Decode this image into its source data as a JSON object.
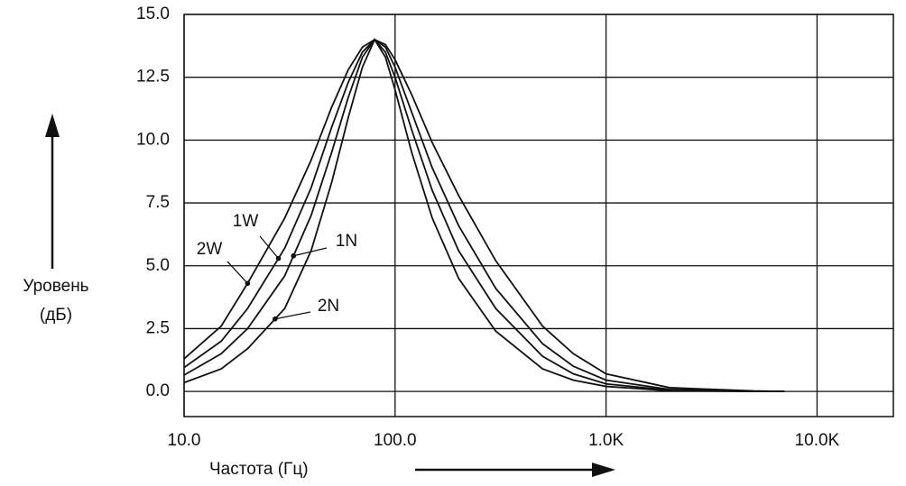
{
  "chart_data": {
    "type": "line",
    "x_label": "Частота (Гц)",
    "y_label": [
      "Уровень",
      "(дБ)"
    ],
    "log_x": true,
    "grid": true,
    "color": "#111111",
    "xlim": [
      10,
      23000
    ],
    "ylim": [
      -1,
      15
    ],
    "xticks": [
      {
        "value": 10,
        "label": "10.0"
      },
      {
        "value": 100,
        "label": "100.0"
      },
      {
        "value": 1000,
        "label": "1.0K"
      },
      {
        "value": 10000,
        "label": "10.0K"
      }
    ],
    "yticks": [
      {
        "value": 0,
        "label": "0.0"
      },
      {
        "value": 2.5,
        "label": "2.5"
      },
      {
        "value": 5,
        "label": "5.0"
      },
      {
        "value": 7.5,
        "label": "7.5"
      },
      {
        "value": 10,
        "label": "10.0"
      },
      {
        "value": 12.5,
        "label": "12.5"
      },
      {
        "value": 15,
        "label": "15.0"
      }
    ],
    "x": [
      10,
      15,
      20,
      30,
      40,
      50,
      60,
      70,
      80,
      90,
      100,
      120,
      150,
      200,
      300,
      500,
      700,
      1000,
      2000,
      5000,
      7000
    ],
    "series": [
      {
        "name": "2W",
        "color": "#111111",
        "values": [
          1.3,
          2.6,
          4.3,
          6.9,
          9.2,
          11.3,
          12.8,
          13.7,
          14.0,
          13.8,
          13.2,
          11.8,
          9.9,
          7.8,
          5.2,
          2.6,
          1.5,
          0.7,
          0.15,
          0.02,
          0
        ]
      },
      {
        "name": "1W",
        "color": "#111111",
        "values": [
          0.95,
          2.0,
          3.3,
          5.7,
          8.1,
          10.5,
          12.3,
          13.5,
          14.0,
          13.7,
          12.9,
          11.1,
          8.9,
          6.6,
          4.1,
          1.9,
          1.0,
          0.45,
          0.08,
          0.01,
          0
        ]
      },
      {
        "name": "1N",
        "color": "#111111",
        "values": [
          0.65,
          1.5,
          2.5,
          4.6,
          7.0,
          9.5,
          11.7,
          13.3,
          14.0,
          13.5,
          12.5,
          10.4,
          8.0,
          5.6,
          3.3,
          1.4,
          0.7,
          0.3,
          0.05,
          0,
          0
        ]
      },
      {
        "name": "2N",
        "color": "#111111",
        "values": [
          0.35,
          0.9,
          1.7,
          3.3,
          5.6,
          8.3,
          10.9,
          12.9,
          14.0,
          13.3,
          12.0,
          9.5,
          6.9,
          4.5,
          2.4,
          0.9,
          0.45,
          0.2,
          0.03,
          0,
          0
        ]
      }
    ]
  }
}
